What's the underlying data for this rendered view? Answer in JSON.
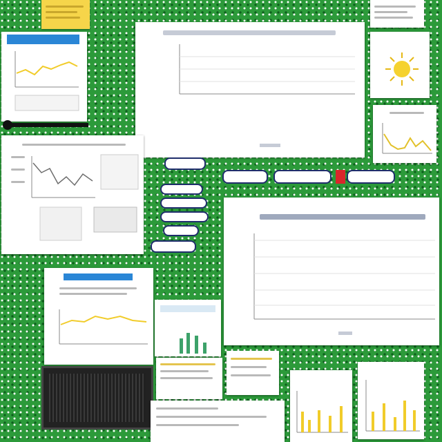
{
  "icons": {
    "sun": "sun-icon",
    "speaker": "speaker-icon"
  },
  "colors": {
    "board_green": "#2c9a3a",
    "accent_yellow": "#f1cc2a",
    "accent_blue": "#4aa0c8",
    "chip_red": "#d9262c"
  }
}
